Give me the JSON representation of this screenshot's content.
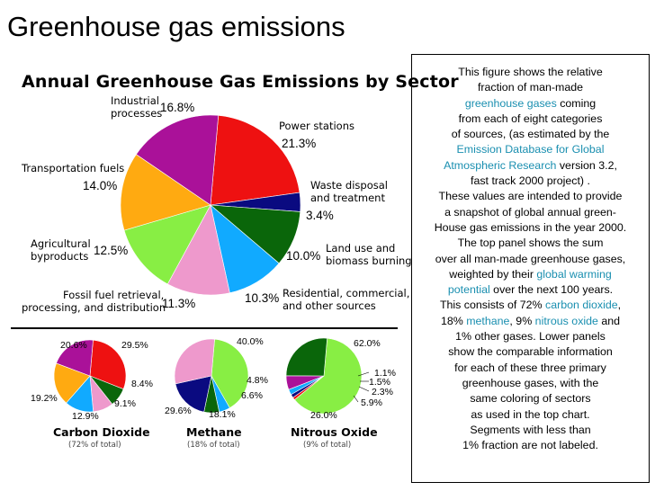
{
  "page_title": "Greenhouse gas emissions",
  "description": {
    "t1": "This figure shows the relative",
    "t2": "fraction of man-made",
    "link_ghg": "greenhouse gases",
    "t3": " coming",
    "t4": "from each of eight categories",
    "t5": "of sources, (as estimated by the",
    "link_edgar1": "Emission Database for Global",
    "link_edgar2": "Atmospheric Research",
    "t6": " version 3.2,",
    "t7": "fast track 2000 project) .",
    "t8": "These values are intended to provide",
    "t9": "a snapshot of global annual green-",
    "t10": "House gas emissions in the year 2000.",
    "t11": "The top panel shows the sum",
    "t12": "over all man-made greenhouse gases,",
    "t13": "weighted by their ",
    "link_gwp1": "global warming",
    "link_gwp2": "potential",
    "t14": " over the next 100 years.",
    "t15": "This consists of 72% ",
    "link_co2": "carbon dioxide",
    "t16": ",",
    "t17": "18% ",
    "link_ch4": "methane",
    "t18": ", 9% ",
    "link_n2o": "nitrous oxide",
    "t19": " and",
    "t20": "1% other gases. Lower panels",
    "t21": "show the comparable information",
    "t22": "for each of these three primary",
    "t23": "greenhouse gases, with the",
    "t24": "same coloring of sectors",
    "t25": "as used in the top chart.",
    "t26": "Segments with less than",
    "t27": "1% fraction are not labeled."
  },
  "link_color": "#1a8fb0",
  "chart_data": [
    {
      "type": "pie",
      "title": "Annual Greenhouse Gas Emissions by Sector",
      "sectors": [
        {
          "name": "Power stations",
          "value": 21.3,
          "label": "21.3%",
          "color": "#ee1111"
        },
        {
          "name": "Waste disposal and treatment",
          "value": 3.4,
          "label": "3.4%",
          "color": "#0a0a80"
        },
        {
          "name": "Land use and biomass burning",
          "value": 10.0,
          "label": "10.0%",
          "color": "#0a660a"
        },
        {
          "name": "Residential, commercial, and other sources",
          "value": 10.3,
          "label": "10.3%",
          "color": "#11aaff"
        },
        {
          "name": "Fossil fuel retrieval, processing, and distribution",
          "value": 11.3,
          "label": "11.3%",
          "color": "#ee99cc"
        },
        {
          "name": "Agricultural byproducts",
          "value": 12.5,
          "label": "12.5%",
          "color": "#88ee44"
        },
        {
          "name": "Transportation fuels",
          "value": 14.0,
          "label": "14.0%",
          "color": "#ffaa11"
        },
        {
          "name": "Industrial processes",
          "value": 16.8,
          "label": "16.8%",
          "color": "#aa1199"
        }
      ],
      "sector_labels": {
        "industrial": [
          "Industrial",
          "processes"
        ],
        "power": [
          "Power stations"
        ],
        "transport": [
          "Transportation fuels"
        ],
        "waste": [
          "Waste disposal",
          "and treatment"
        ],
        "agri": [
          "Agricultural",
          "byproducts"
        ],
        "land": [
          "Land use and",
          "biomass burning"
        ],
        "fossil": [
          "Fossil fuel retrieval,",
          "processing, and distribution"
        ],
        "resid": [
          "Residential, commercial,",
          "and other sources"
        ]
      }
    },
    {
      "type": "pie",
      "title": "Carbon Dioxide",
      "subtitle": "(72% of total)",
      "sectors": [
        {
          "name": "Power stations",
          "value": 29.5,
          "label": "29.5%",
          "color": "#ee1111"
        },
        {
          "name": "Land use and biomass burning",
          "value": 8.4,
          "label": "8.4%",
          "color": "#0a660a"
        },
        {
          "name": "Fossil fuel retrieval, processing, and distribution",
          "value": 9.1,
          "label": "9.1%",
          "color": "#ee99cc"
        },
        {
          "name": "Residential, commercial, and other sources",
          "value": 12.9,
          "label": "12.9%",
          "color": "#11aaff"
        },
        {
          "name": "Transportation fuels",
          "value": 19.2,
          "label": "19.2%",
          "color": "#ffaa11"
        },
        {
          "name": "Industrial processes",
          "value": 20.6,
          "label": "20.6%",
          "color": "#aa1199"
        }
      ]
    },
    {
      "type": "pie",
      "title": "Methane",
      "subtitle": "(18% of total)",
      "sectors": [
        {
          "name": "Agricultural byproducts",
          "value": 40.0,
          "label": "40.0%",
          "color": "#88ee44"
        },
        {
          "name": "Residential, commercial, and other sources",
          "value": 4.8,
          "label": "4.8%",
          "color": "#11aaff"
        },
        {
          "name": "Land use and biomass burning",
          "value": 6.6,
          "label": "6.6%",
          "color": "#0a660a"
        },
        {
          "name": "Waste disposal and treatment",
          "value": 18.1,
          "label": "18.1%",
          "color": "#0a0a80"
        },
        {
          "name": "Fossil fuel retrieval, processing, and distribution",
          "value": 29.6,
          "label": "29.6%",
          "color": "#ee99cc"
        }
      ]
    },
    {
      "type": "pie",
      "title": "Nitrous Oxide",
      "subtitle": "(9% of total)",
      "sectors": [
        {
          "name": "Agricultural byproducts",
          "value": 62.0,
          "label": "62.0%",
          "color": "#88ee44"
        },
        {
          "name": "Power stations",
          "value": 1.1,
          "label": "1.1%",
          "color": "#ee1111"
        },
        {
          "name": "Waste disposal and treatment",
          "value": 1.5,
          "label": "1.5%",
          "color": "#0a0a80"
        },
        {
          "name": "Residential, commercial, and other sources",
          "value": 2.3,
          "label": "2.3%",
          "color": "#11aaff"
        },
        {
          "name": "Industrial processes",
          "value": 5.9,
          "label": "5.9%",
          "color": "#aa1199"
        },
        {
          "name": "Land use and biomass burning",
          "value": 26.0,
          "label": "26.0%",
          "color": "#0a660a"
        }
      ]
    }
  ]
}
